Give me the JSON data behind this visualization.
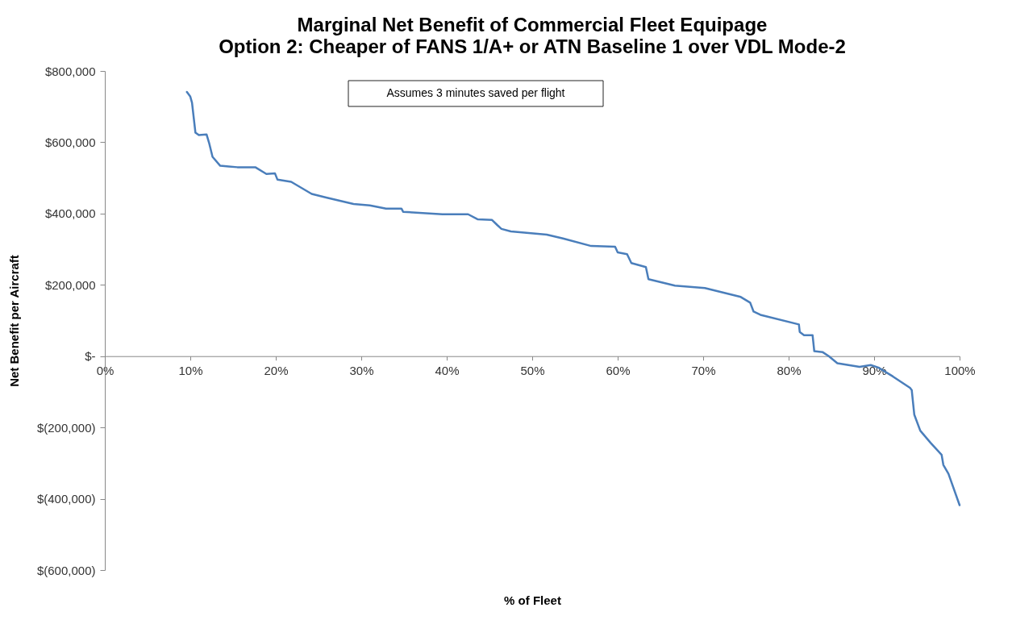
{
  "chart_data": {
    "type": "line",
    "title": "Marginal Net Benefit of Commercial Fleet Equipage",
    "subtitle": "Option 2: Cheaper of FANS 1/A+ or ATN Baseline 1 over VDL Mode-2",
    "xlabel": "% of Fleet",
    "ylabel": "Net Benefit per Aircraft",
    "annotations": [
      "Assumes 3 minutes saved per flight"
    ],
    "x": [
      9.6,
      10.0,
      10.2,
      10.6,
      11.0,
      11.9,
      12.2,
      12.6,
      13.5,
      14.5,
      15.5,
      17.6,
      18.9,
      19.9,
      20.2,
      21.8,
      24.2,
      25.9,
      29.1,
      31.0,
      32.9,
      34.7,
      34.9,
      39.5,
      42.5,
      43.6,
      45.3,
      45.9,
      46.4,
      47.5,
      51.7,
      53.6,
      56.9,
      59.7,
      60.0,
      61.1,
      61.6,
      63.3,
      63.6,
      66.7,
      70.2,
      74.4,
      75.5,
      75.9,
      76.7,
      81.2,
      81.3,
      81.8,
      82.8,
      83.0,
      84.0,
      84.7,
      85.7,
      88.3,
      89.6,
      90.5,
      92.2,
      94.2,
      94.4,
      94.7,
      95.4,
      96.6,
      97.9,
      98.1,
      98.7,
      100
    ],
    "series": [
      {
        "color": "#4a7ebb",
        "values": [
          741000,
          728000,
          711000,
          627000,
          620000,
          622000,
          598000,
          559000,
          534000,
          532000,
          530000,
          530000,
          511000,
          513000,
          495000,
          489000,
          455000,
          445000,
          427000,
          423000,
          414000,
          414000,
          405000,
          398000,
          398000,
          384000,
          382000,
          368000,
          357000,
          350000,
          341000,
          330000,
          309000,
          307000,
          291000,
          286000,
          261000,
          250000,
          216000,
          198000,
          191000,
          166000,
          150000,
          125000,
          116000,
          89000,
          68000,
          59000,
          59000,
          14000,
          11000,
          0,
          -20000,
          -30000,
          -25000,
          -32000,
          -57000,
          -89000,
          -95000,
          -164000,
          -209000,
          -243000,
          -277000,
          -305000,
          -330000,
          -418000
        ]
      }
    ],
    "xlim": [
      0,
      100
    ],
    "xticks": [
      {
        "value": 0,
        "label": "0%"
      },
      {
        "value": 10,
        "label": "10%"
      },
      {
        "value": 20,
        "label": "20%"
      },
      {
        "value": 30,
        "label": "30%"
      },
      {
        "value": 40,
        "label": "40%"
      },
      {
        "value": 50,
        "label": "50%"
      },
      {
        "value": 60,
        "label": "60%"
      },
      {
        "value": 70,
        "label": "70%"
      },
      {
        "value": 80,
        "label": "80%"
      },
      {
        "value": 90,
        "label": "90%"
      },
      {
        "value": 100,
        "label": "100%"
      }
    ],
    "ylim": [
      -600000,
      800000
    ],
    "yticks": [
      {
        "value": -600000,
        "label": "$(600,000)"
      },
      {
        "value": -400000,
        "label": "$(400,000)"
      },
      {
        "value": -200000,
        "label": "$(200,000)"
      },
      {
        "value": 0,
        "label": "$-"
      },
      {
        "value": 200000,
        "label": "$200,000"
      },
      {
        "value": 400000,
        "label": "$400,000"
      },
      {
        "value": 600000,
        "label": "$600,000"
      },
      {
        "value": 800000,
        "label": "$800,000"
      }
    ],
    "grid": false,
    "marker": "none",
    "line_style": "solid"
  }
}
